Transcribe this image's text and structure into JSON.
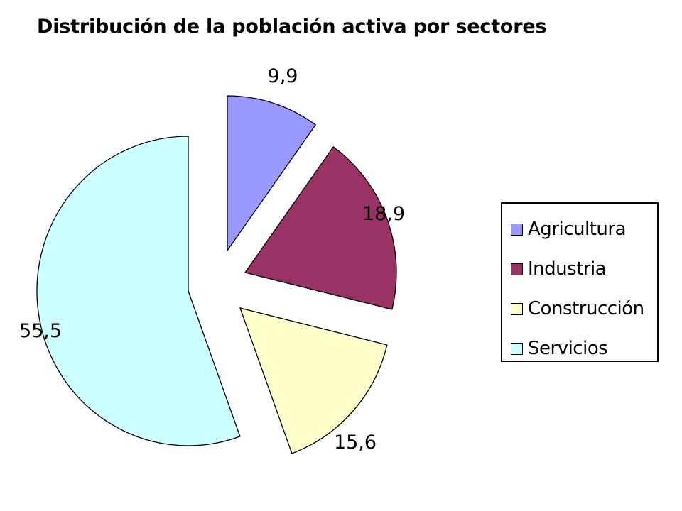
{
  "chart_data": {
    "type": "pie",
    "title": "Distribución de la población activa por sectores",
    "categories": [
      "Agricultura",
      "Industria",
      "Construcción",
      "Servicios"
    ],
    "values": [
      9.9,
      18.9,
      15.6,
      55.5
    ],
    "value_labels": [
      "9,9",
      "18,9",
      "15,6",
      "55,5"
    ],
    "colors": [
      "#9999ff",
      "#993366",
      "#ffffcc",
      "#ccffff"
    ],
    "exploded": true,
    "legend_position": "right"
  }
}
